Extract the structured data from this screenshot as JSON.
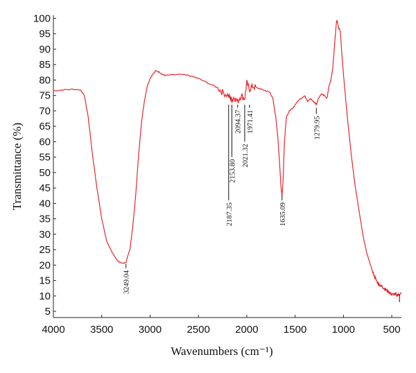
{
  "chart_data": {
    "type": "line",
    "xlabel": "Wavenumbers (cm⁻¹)",
    "ylabel": "Transmittance (%)",
    "xlim": [
      4000,
      400
    ],
    "x_reversed": true,
    "ylim": [
      3,
      101
    ],
    "x_ticks": [
      4000,
      3500,
      3000,
      2500,
      2000,
      1500,
      1000,
      500
    ],
    "y_ticks": [
      5,
      10,
      15,
      20,
      25,
      30,
      35,
      40,
      45,
      50,
      55,
      60,
      65,
      70,
      75,
      80,
      85,
      90,
      95,
      100
    ],
    "grid": false,
    "line_color": "#e8232a",
    "series": [
      {
        "x": [
          4000,
          3900,
          3800,
          3720,
          3680,
          3640,
          3600,
          3550,
          3500,
          3450,
          3400,
          3350,
          3320,
          3290,
          3249.04,
          3210,
          3180,
          3150,
          3120,
          3090,
          3060,
          3030,
          3000,
          2970,
          2940,
          2900,
          2870,
          2850,
          2800,
          2700,
          2600,
          2500,
          2400,
          2300,
          2250,
          2187.35,
          2170,
          2153.8,
          2130,
          2094.37,
          2060,
          2021.32,
          2000,
          1971.41,
          1940,
          1900,
          1850,
          1800,
          1760,
          1730,
          1700,
          1680,
          1660,
          1645,
          1635.09,
          1625,
          1610,
          1590,
          1560,
          1520,
          1480,
          1440,
          1400,
          1370,
          1340,
          1310,
          1290,
          1279.95,
          1260,
          1230,
          1200,
          1170,
          1150,
          1130,
          1110,
          1095,
          1080,
          1070,
          1060,
          1050,
          1040,
          1030,
          1020,
          1000,
          980,
          960,
          940,
          920,
          900,
          880,
          860,
          840,
          820,
          800,
          780,
          760,
          740,
          720,
          700,
          680,
          660,
          640,
          620,
          600,
          580,
          560,
          540,
          520,
          500,
          480,
          460,
          440,
          420,
          400
        ],
        "y": [
          76.5,
          76.8,
          77,
          76.8,
          75,
          68,
          57,
          45,
          35,
          28,
          24.5,
          22,
          21,
          20.5,
          21,
          25,
          32,
          42,
          55,
          66,
          73,
          78,
          80.5,
          82,
          83,
          82.5,
          81.8,
          81.5,
          81.6,
          81.8,
          81.5,
          80.5,
          79,
          77.5,
          76,
          75,
          74,
          73.5,
          74.5,
          73,
          75,
          74,
          79,
          77,
          78,
          77.5,
          77,
          76.5,
          76,
          74,
          68,
          62,
          53,
          45,
          42.5,
          47,
          60,
          68,
          70,
          71,
          73,
          74,
          75,
          73,
          74,
          73,
          72.5,
          72,
          74,
          75.5,
          75,
          74,
          78,
          80,
          84,
          90,
          96,
          99.5,
          98.5,
          97,
          96.5,
          95,
          90,
          82,
          75,
          68,
          62,
          56,
          51,
          46,
          42,
          38,
          34,
          30,
          27,
          24,
          22,
          20,
          18,
          16.5,
          15,
          14,
          13.5,
          13,
          12.5,
          12,
          11.5,
          11,
          10.5,
          10.5,
          10.5,
          10.3,
          10.5,
          10.8
        ]
      }
    ],
    "annotations": [
      {
        "label": "3249.04",
        "x": 3249.04,
        "y_peak": 20.5,
        "y_end": 19
      },
      {
        "label": "2187.35",
        "x": 2187.35,
        "y_peak": 72,
        "y_end": 41
      },
      {
        "label": "2153.80",
        "x": 2153.8,
        "y_peak": 72,
        "y_end": 55
      },
      {
        "label": "2094.37",
        "x": 2094.37,
        "y_peak": 72,
        "y_end": 71
      },
      {
        "label": "2021.32",
        "x": 2021.32,
        "y_peak": 72,
        "y_end": 60
      },
      {
        "label": "1971.41",
        "x": 1971.41,
        "y_peak": 72,
        "y_end": 71
      },
      {
        "label": "1635.09",
        "x": 1635.09,
        "y_peak": 42.5,
        "y_end": 41
      },
      {
        "label": "1279.95",
        "x": 1279.95,
        "y_peak": 71,
        "y_end": 69
      },
      {
        "label": "",
        "x": 420,
        "y_peak": 10.5,
        "y_end": 8
      }
    ]
  }
}
